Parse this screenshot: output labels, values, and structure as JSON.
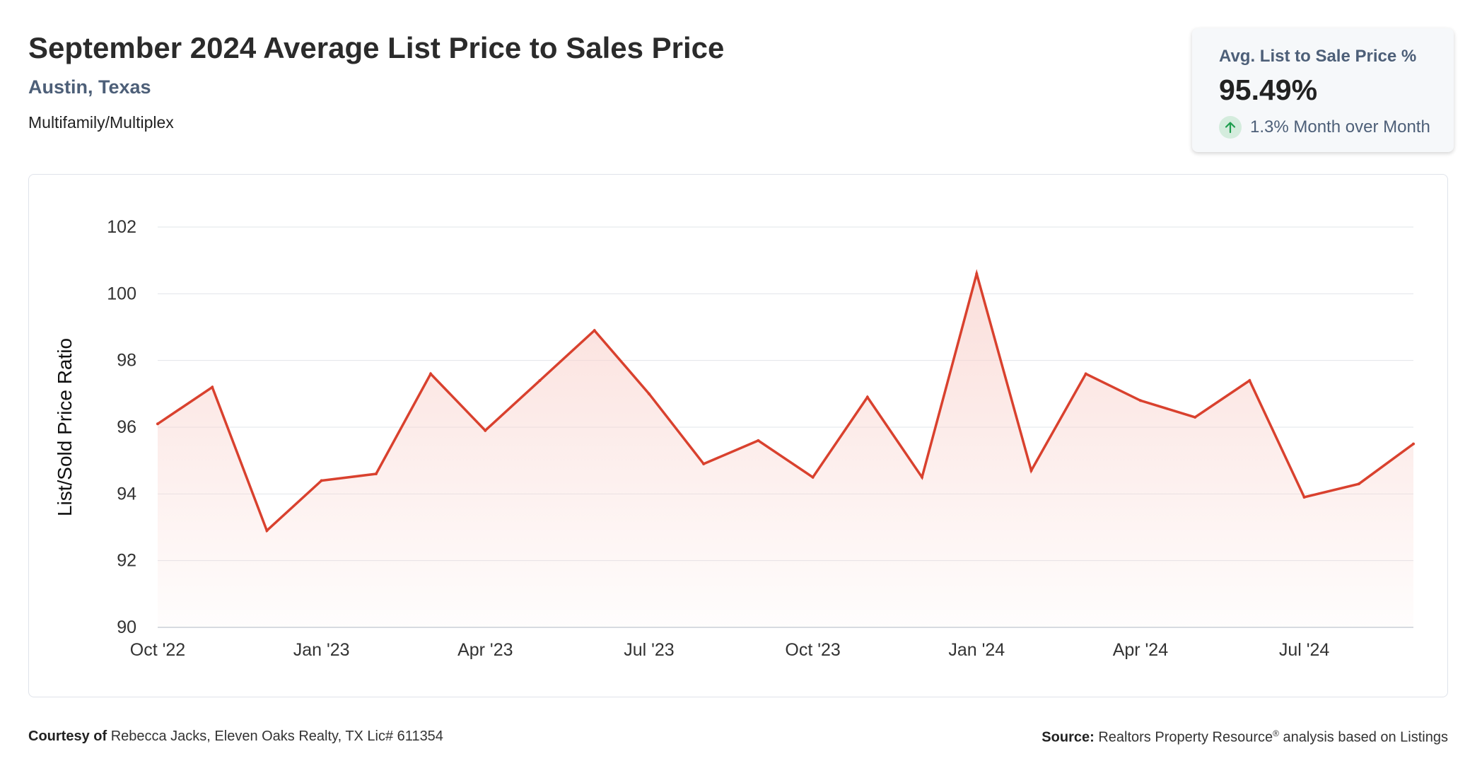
{
  "header": {
    "title": "September 2024 Average List Price to Sales Price",
    "location": "Austin, Texas",
    "category": "Multifamily/Multiplex"
  },
  "kpi": {
    "label": "Avg. List to Sale Price %",
    "value": "95.49%",
    "change": "1.3% Month over Month",
    "icon": "arrow-up-icon"
  },
  "colors": {
    "line": "#d9412e",
    "fill": "#f9d4cf",
    "kpi_up": "#1e9d4e"
  },
  "chart_data": {
    "type": "area",
    "title": "",
    "xlabel": "",
    "ylabel": "List/Sold Price Ratio",
    "ylim": [
      90,
      102
    ],
    "yticks": [
      90,
      92,
      94,
      96,
      98,
      100,
      102
    ],
    "grid": true,
    "x": [
      "2022-10",
      "2022-11",
      "2022-12",
      "2023-01",
      "2023-02",
      "2023-03",
      "2023-04",
      "2023-05",
      "2023-06",
      "2023-07",
      "2023-08",
      "2023-09",
      "2023-10",
      "2023-11",
      "2023-12",
      "2024-01",
      "2024-02",
      "2024-03",
      "2024-04",
      "2024-05",
      "2024-06",
      "2024-07",
      "2024-08",
      "2024-09"
    ],
    "x_tick_labels": [
      {
        "x": "2022-10",
        "label": "Oct '22"
      },
      {
        "x": "2023-01",
        "label": "Jan '23"
      },
      {
        "x": "2023-04",
        "label": "Apr '23"
      },
      {
        "x": "2023-07",
        "label": "Jul '23"
      },
      {
        "x": "2023-10",
        "label": "Oct '23"
      },
      {
        "x": "2024-01",
        "label": "Jan '24"
      },
      {
        "x": "2024-04",
        "label": "Apr '24"
      },
      {
        "x": "2024-07",
        "label": "Jul '24"
      }
    ],
    "series": [
      {
        "values": [
          96.1,
          97.2,
          92.9,
          94.4,
          94.6,
          97.6,
          95.9,
          97.4,
          98.9,
          97.0,
          94.9,
          95.6,
          94.5,
          96.9,
          94.5,
          100.6,
          94.7,
          97.6,
          96.8,
          96.3,
          97.4,
          93.9,
          94.3,
          95.5
        ]
      }
    ]
  },
  "footer": {
    "courtesy_label": "Courtesy of",
    "courtesy_text": "Rebecca Jacks, Eleven Oaks Realty, TX Lic# 611354",
    "source_label": "Source:",
    "source_text_1": "Realtors Property Resource",
    "source_sup": "®",
    "source_text_2": "analysis based on Listings"
  }
}
